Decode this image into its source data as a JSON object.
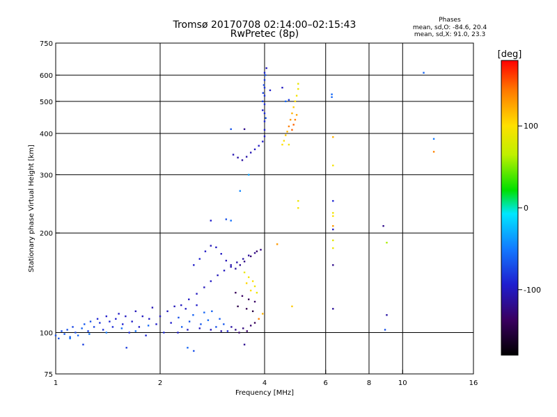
{
  "chart_data": {
    "type": "scatter",
    "title": "Tromsø 20170708 02:14:00–02:15:43",
    "subtitle": "RwPretec (8p)",
    "xlabel": "Frequency [MHz]",
    "ylabel": "Stationary phase Virtual Height [km]",
    "x_scale": "log2",
    "y_scale": "log",
    "xlim": [
      1,
      16
    ],
    "ylim": [
      75,
      750
    ],
    "x_ticks": [
      1,
      2,
      4,
      6,
      8,
      10,
      16
    ],
    "x_tick_labels": [
      "1",
      "2",
      "4",
      "6",
      "8",
      "10",
      "16"
    ],
    "y_ticks": [
      75,
      100,
      200,
      300,
      400,
      500,
      600,
      750
    ],
    "y_tick_labels": [
      "75",
      "100",
      "200",
      "300",
      "400",
      "500",
      "600",
      "750"
    ],
    "grid": true,
    "stats": {
      "heading": "Phases",
      "line1": "mean, sd,O: -84.6, 20.4",
      "line2": "mean, sd,X:  91.0, 23.3"
    },
    "colorbar": {
      "label": "[deg]",
      "range": [
        -180,
        180
      ],
      "ticks": [
        100,
        0,
        -100
      ],
      "tick_labels": [
        "100",
        "0",
        "-100"
      ],
      "colormap": "rainbow"
    },
    "points_encoding": "[frequency MHz, virtual height km, phase deg]",
    "points": [
      [
        1.0,
        98,
        -70
      ],
      [
        1.02,
        96,
        -68
      ],
      [
        1.04,
        101,
        -72
      ],
      [
        1.06,
        99,
        -66
      ],
      [
        1.08,
        102,
        -70
      ],
      [
        1.1,
        97,
        -64
      ],
      [
        1.12,
        104,
        -75
      ],
      [
        1.14,
        100,
        -72
      ],
      [
        1.16,
        98,
        -60
      ],
      [
        1.19,
        103,
        -62
      ],
      [
        1.21,
        106,
        -66
      ],
      [
        1.24,
        101,
        -78
      ],
      [
        1.26,
        108,
        -70
      ],
      [
        1.29,
        104,
        -75
      ],
      [
        1.32,
        110,
        -90
      ],
      [
        1.34,
        107,
        -84
      ],
      [
        1.37,
        102,
        -86
      ],
      [
        1.4,
        112,
        -95
      ],
      [
        1.43,
        108,
        -90
      ],
      [
        1.46,
        104,
        -88
      ],
      [
        1.49,
        110,
        -94
      ],
      [
        1.52,
        114,
        -98
      ],
      [
        1.56,
        106,
        -92
      ],
      [
        1.59,
        112,
        -100
      ],
      [
        1.63,
        100,
        -88
      ],
      [
        1.66,
        108,
        -96
      ],
      [
        1.7,
        116,
        -102
      ],
      [
        1.74,
        104,
        -94
      ],
      [
        1.78,
        112,
        -100
      ],
      [
        1.82,
        98,
        -90
      ],
      [
        1.86,
        110,
        -98
      ],
      [
        1.9,
        119,
        -104
      ],
      [
        1.95,
        106,
        -96
      ],
      [
        2.0,
        112,
        -100
      ],
      [
        2.05,
        100,
        -88
      ],
      [
        2.1,
        116,
        -100
      ],
      [
        2.15,
        107,
        -94
      ],
      [
        2.2,
        120,
        -102
      ],
      [
        2.26,
        111,
        -70
      ],
      [
        2.31,
        104,
        -64
      ],
      [
        2.37,
        118,
        -98
      ],
      [
        2.43,
        108,
        -68
      ],
      [
        2.49,
        113,
        -62
      ],
      [
        2.55,
        121,
        -96
      ],
      [
        2.62,
        106,
        -66
      ],
      [
        2.68,
        115,
        -60
      ],
      [
        2.75,
        109,
        -58
      ],
      [
        2.82,
        116,
        -62
      ],
      [
        2.9,
        104,
        -70
      ],
      [
        2.97,
        110,
        -64
      ],
      [
        3.05,
        106,
        -66
      ],
      [
        3.13,
        101,
        -90
      ],
      [
        3.21,
        104,
        -110
      ],
      [
        3.3,
        102,
        -120
      ],
      [
        3.38,
        100,
        -130
      ],
      [
        3.47,
        103,
        -125
      ],
      [
        3.56,
        101,
        -135
      ],
      [
        3.65,
        105,
        -130
      ],
      [
        3.75,
        107,
        -140
      ],
      [
        3.85,
        110,
        140
      ],
      [
        3.95,
        114,
        120
      ],
      [
        1.1,
        96,
        -55
      ],
      [
        1.25,
        99,
        -52
      ],
      [
        1.4,
        100,
        -50
      ],
      [
        1.55,
        103,
        -56
      ],
      [
        1.7,
        101,
        -54
      ],
      [
        1.85,
        105,
        -58
      ],
      [
        2.25,
        100,
        -95
      ],
      [
        2.4,
        102,
        -98
      ],
      [
        2.6,
        103,
        -100
      ],
      [
        2.8,
        102,
        -104
      ],
      [
        3.0,
        101,
        -110
      ],
      [
        2.3,
        121,
        -100
      ],
      [
        2.42,
        126,
        -98
      ],
      [
        2.55,
        131,
        -100
      ],
      [
        2.68,
        137,
        -102
      ],
      [
        2.8,
        143,
        -98
      ],
      [
        2.93,
        149,
        -102
      ],
      [
        3.06,
        154,
        -100
      ],
      [
        3.2,
        158,
        -104
      ],
      [
        3.33,
        163,
        -108
      ],
      [
        3.47,
        167,
        -110
      ],
      [
        3.6,
        171,
        -114
      ],
      [
        3.75,
        174,
        -120
      ],
      [
        3.9,
        178,
        -124
      ],
      [
        2.5,
        160,
        -96
      ],
      [
        2.6,
        167,
        -92
      ],
      [
        2.7,
        176,
        -98
      ],
      [
        2.8,
        183,
        -102
      ],
      [
        2.9,
        181,
        -100
      ],
      [
        3.0,
        173,
        -98
      ],
      [
        3.1,
        165,
        -104
      ],
      [
        3.2,
        160,
        -108
      ],
      [
        3.3,
        156,
        -112
      ],
      [
        3.4,
        160,
        -118
      ],
      [
        3.5,
        164,
        -122
      ],
      [
        3.65,
        170,
        -128
      ],
      [
        3.8,
        176,
        -132
      ],
      [
        3.3,
        132,
        -140
      ],
      [
        3.45,
        129,
        -135
      ],
      [
        3.6,
        126,
        -140
      ],
      [
        3.75,
        124,
        -135
      ],
      [
        3.35,
        120,
        -146
      ],
      [
        3.55,
        118,
        -142
      ],
      [
        3.7,
        116,
        -148
      ],
      [
        3.5,
        152,
        88
      ],
      [
        3.6,
        147,
        95
      ],
      [
        3.7,
        143,
        100
      ],
      [
        3.75,
        138,
        92
      ],
      [
        3.65,
        134,
        100
      ],
      [
        3.55,
        141,
        105
      ],
      [
        3.8,
        132,
        90
      ],
      [
        3.25,
        345,
        -105
      ],
      [
        3.35,
        338,
        -110
      ],
      [
        3.45,
        332,
        -112
      ],
      [
        3.55,
        340,
        -108
      ],
      [
        3.65,
        350,
        -104
      ],
      [
        3.75,
        358,
        -100
      ],
      [
        3.85,
        367,
        -98
      ],
      [
        3.95,
        378,
        -96
      ],
      [
        4.0,
        392,
        -94
      ],
      [
        4.0,
        410,
        -92
      ],
      [
        4.0,
        435,
        -90
      ],
      [
        4.0,
        460,
        -88
      ],
      [
        4.0,
        490,
        -86
      ],
      [
        4.0,
        520,
        -84
      ],
      [
        4.0,
        550,
        -82
      ],
      [
        4.0,
        580,
        -80
      ],
      [
        4.0,
        610,
        -90
      ],
      [
        4.05,
        630,
        -100
      ],
      [
        4.02,
        600,
        -70
      ],
      [
        3.98,
        560,
        -72
      ],
      [
        3.96,
        530,
        -75
      ],
      [
        3.95,
        500,
        -78
      ],
      [
        3.95,
        470,
        -95
      ],
      [
        4.03,
        445,
        -70
      ],
      [
        3.2,
        412,
        -68
      ],
      [
        3.5,
        412,
        -120
      ],
      [
        4.15,
        540,
        -95
      ],
      [
        4.5,
        550,
        -100
      ],
      [
        4.6,
        500,
        -60
      ],
      [
        4.7,
        505,
        -80
      ],
      [
        4.55,
        380,
        100
      ],
      [
        4.6,
        395,
        110
      ],
      [
        4.65,
        405,
        120
      ],
      [
        4.7,
        420,
        140
      ],
      [
        4.75,
        440,
        130
      ],
      [
        4.8,
        460,
        120
      ],
      [
        4.85,
        480,
        110
      ],
      [
        4.9,
        500,
        100
      ],
      [
        4.95,
        520,
        95
      ],
      [
        5.0,
        545,
        90
      ],
      [
        5.0,
        565,
        88
      ],
      [
        4.8,
        410,
        150
      ],
      [
        4.85,
        425,
        150
      ],
      [
        4.9,
        440,
        140
      ],
      [
        4.95,
        455,
        125
      ],
      [
        4.5,
        370,
        100
      ],
      [
        4.7,
        370,
        95
      ],
      [
        4.35,
        185,
        130
      ],
      [
        4.8,
        120,
        110
      ],
      [
        5.0,
        238,
        95
      ],
      [
        5.0,
        250,
        90
      ],
      [
        6.25,
        515,
        -60
      ],
      [
        6.25,
        525,
        -58
      ],
      [
        6.3,
        390,
        120
      ],
      [
        6.3,
        320,
        95
      ],
      [
        6.3,
        230,
        92
      ],
      [
        6.3,
        225,
        100
      ],
      [
        6.3,
        210,
        130
      ],
      [
        6.3,
        205,
        -100
      ],
      [
        6.3,
        190,
        85
      ],
      [
        6.3,
        180,
        90
      ],
      [
        6.3,
        160,
        -120
      ],
      [
        6.3,
        118,
        -115
      ],
      [
        6.3,
        250,
        -90
      ],
      [
        8.8,
        210,
        -120
      ],
      [
        9.0,
        187,
        60
      ],
      [
        9.0,
        113,
        -110
      ],
      [
        8.9,
        102,
        -70
      ],
      [
        11.5,
        610,
        -60
      ],
      [
        12.3,
        385,
        -50
      ],
      [
        12.3,
        352,
        140
      ],
      [
        2.8,
        218,
        -95
      ],
      [
        3.1,
        220,
        -70
      ],
      [
        3.2,
        218,
        -55
      ],
      [
        3.4,
        268,
        -45
      ],
      [
        3.6,
        300,
        -35
      ],
      [
        3.5,
        92,
        -118
      ],
      [
        2.4,
        90,
        -60
      ],
      [
        2.5,
        88,
        -70
      ],
      [
        1.6,
        90,
        -80
      ],
      [
        1.2,
        92,
        -78
      ]
    ]
  }
}
